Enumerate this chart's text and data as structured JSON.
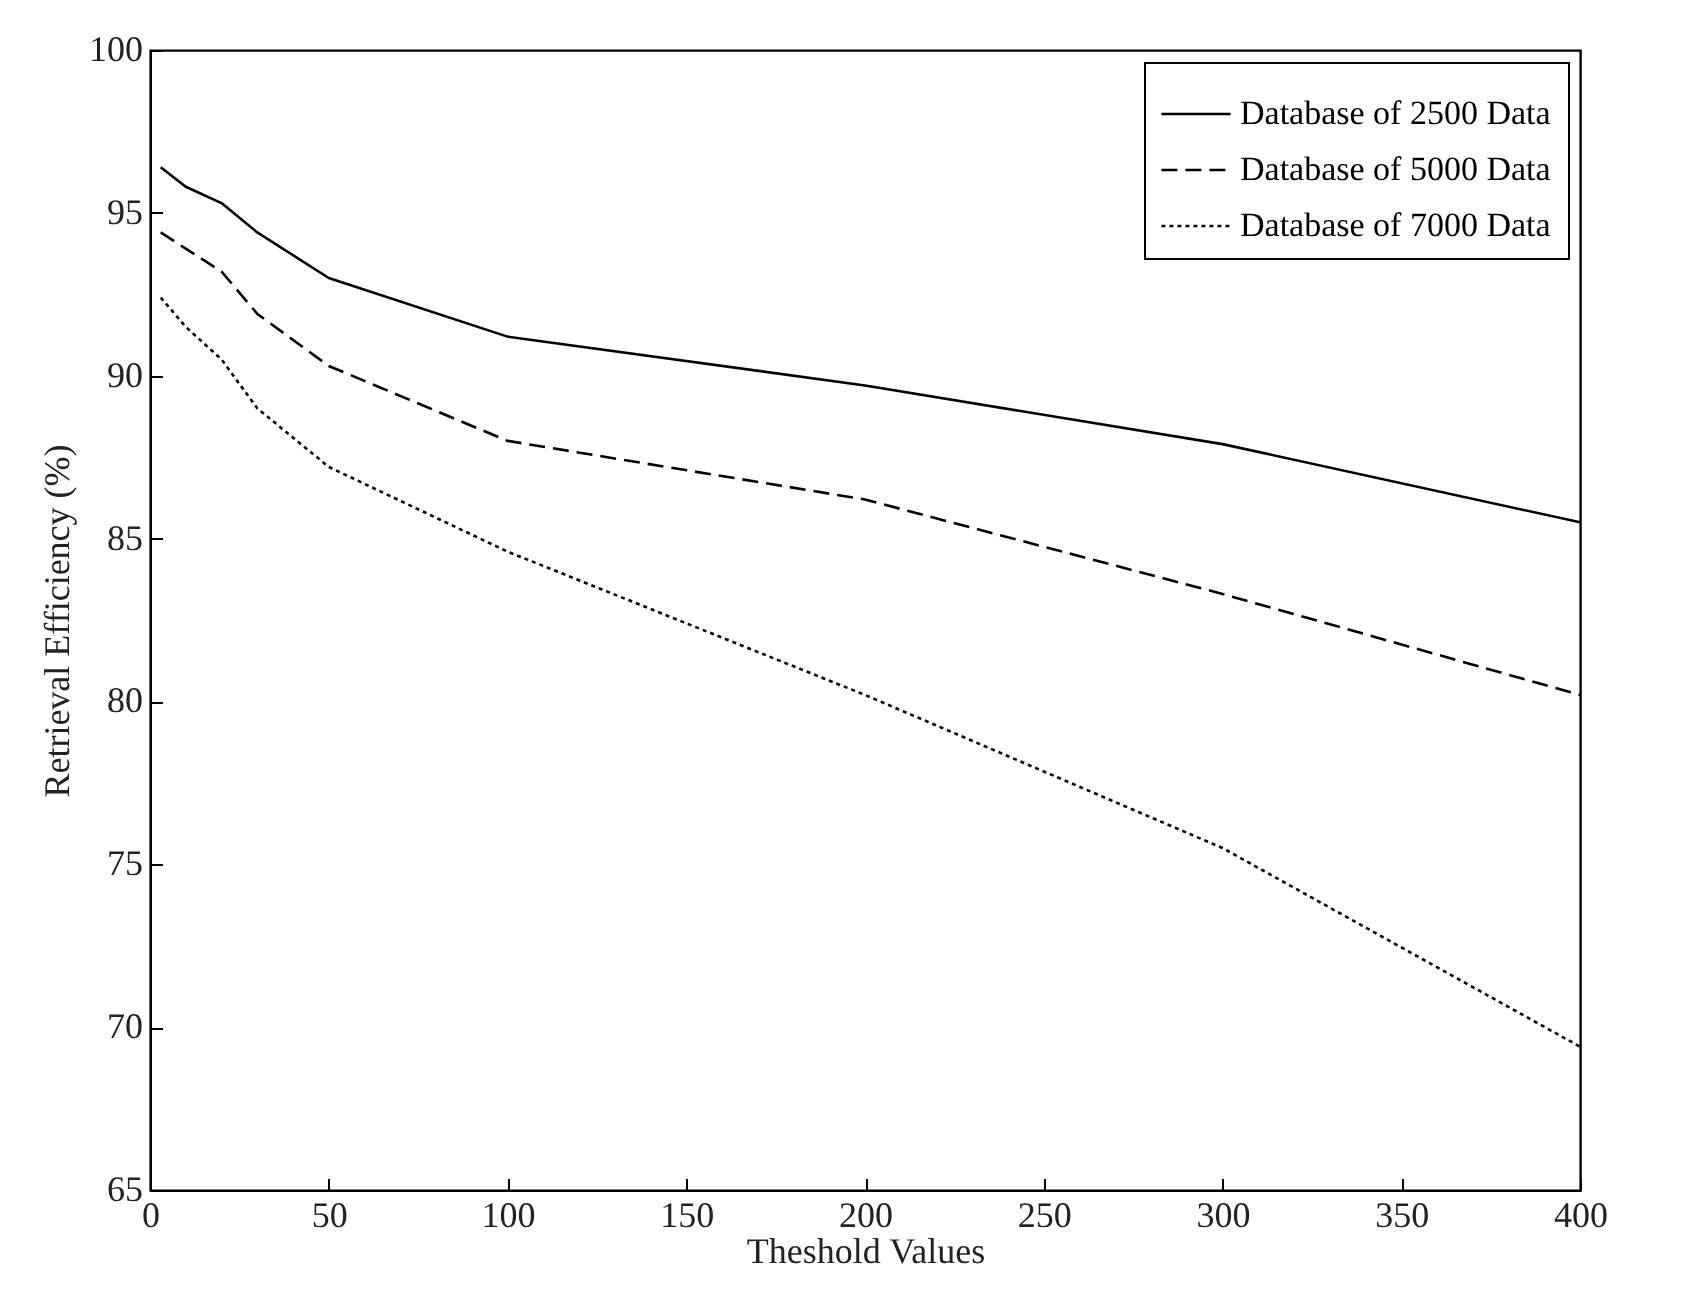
{
  "chart_data": {
    "type": "line",
    "xlabel": "Theshold Values",
    "ylabel": "Retrieval Efficiency (%)",
    "x": [
      3,
      10,
      20,
      30,
      50,
      100,
      200,
      300,
      400
    ],
    "series": [
      {
        "name": "Database of 2500 Data",
        "color": "#000000",
        "line_style": "solid",
        "values": [
          96.4,
          95.8,
          95.3,
          94.4,
          93.0,
          91.2,
          89.7,
          87.9,
          85.5
        ]
      },
      {
        "name": "Database of 5000 Data",
        "color": "#000000",
        "line_style": "dashed",
        "values": [
          94.4,
          93.9,
          93.2,
          91.9,
          90.3,
          88.0,
          86.2,
          83.3,
          80.2
        ]
      },
      {
        "name": "Database of 7000 Data",
        "color": "#000000",
        "line_style": "dotted",
        "values": [
          92.4,
          91.5,
          90.5,
          89.0,
          87.2,
          84.6,
          80.2,
          75.5,
          69.4
        ]
      }
    ],
    "xlim": [
      0,
      400
    ],
    "xticks": [
      0,
      50,
      100,
      150,
      200,
      250,
      300,
      350,
      400
    ],
    "ylim": [
      65,
      100
    ],
    "yticks": [
      65,
      70,
      75,
      80,
      85,
      90,
      95,
      100
    ],
    "grid": false,
    "legend": "top right",
    "marker": "none"
  }
}
